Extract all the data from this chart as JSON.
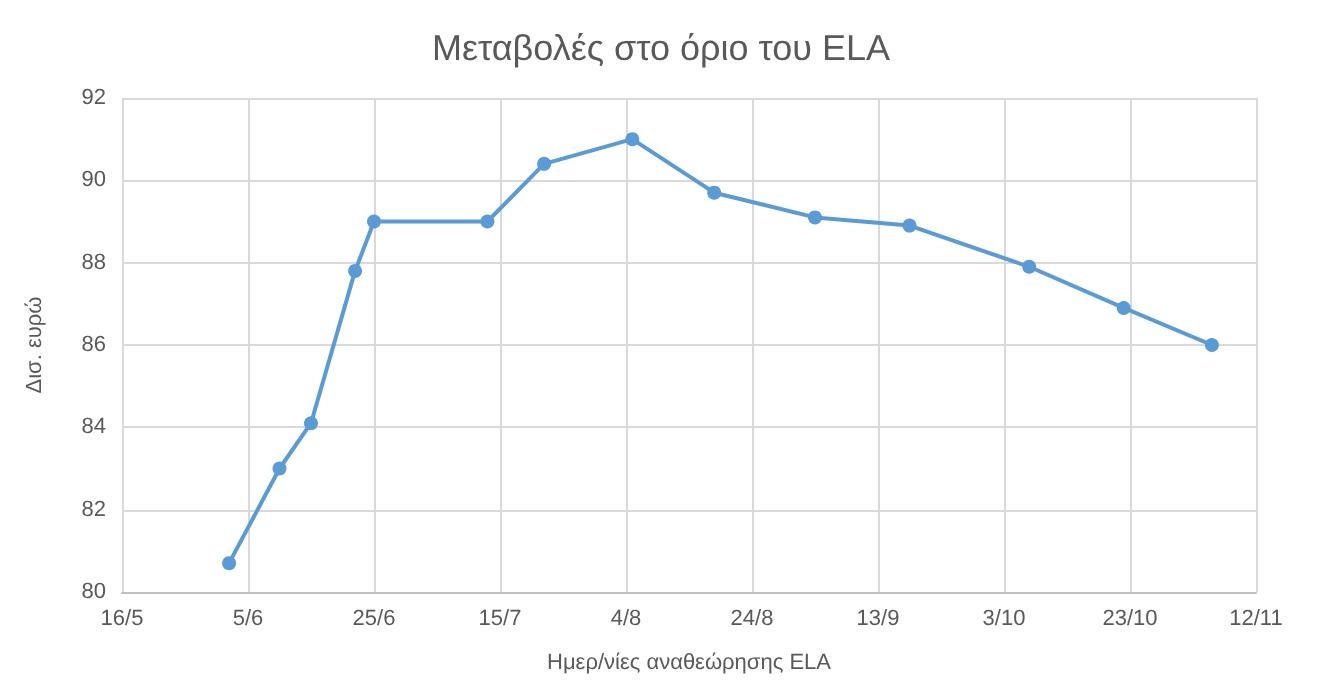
{
  "chart_data": {
    "type": "line",
    "title": "Μεταβολές στο όριο του ELA",
    "xlabel": "Ημερ/νίες αναθεώρησης ELA",
    "ylabel": "Δισ. ευρώ",
    "x": [
      "--06-02",
      "--06-10",
      "--06-15",
      "--06-22",
      "--06-25",
      "--07-13",
      "--07-22",
      "--08-05",
      "--08-18",
      "--09-03",
      "--09-18",
      "--10-07",
      "--10-22",
      "--11-05"
    ],
    "series": [
      {
        "color": "#5b9bd5",
        "values": [
          80.7,
          83.0,
          84.1,
          87.8,
          89.0,
          89.0,
          90.4,
          91.0,
          89.7,
          89.1,
          88.9,
          87.9,
          86.9,
          86.0
        ]
      }
    ],
    "xlim": [
      "--05-16",
      "--11-12"
    ],
    "xticks": [
      {
        "value": "--05-16",
        "label": "16/5"
      },
      {
        "value": "--06-05",
        "label": "5/6"
      },
      {
        "value": "--06-25",
        "label": "25/6"
      },
      {
        "value": "--07-15",
        "label": "15/7"
      },
      {
        "value": "--08-04",
        "label": "4/8"
      },
      {
        "value": "--08-24",
        "label": "24/8"
      },
      {
        "value": "--09-13",
        "label": "13/9"
      },
      {
        "value": "--10-03",
        "label": "3/10"
      },
      {
        "value": "--10-23",
        "label": "23/10"
      },
      {
        "value": "--11-12",
        "label": "12/11"
      }
    ],
    "ylim": [
      80,
      92
    ],
    "yticks": [
      80,
      82,
      84,
      86,
      88,
      90,
      92
    ],
    "grid": true,
    "marker": "circle",
    "line_style": "solid"
  }
}
